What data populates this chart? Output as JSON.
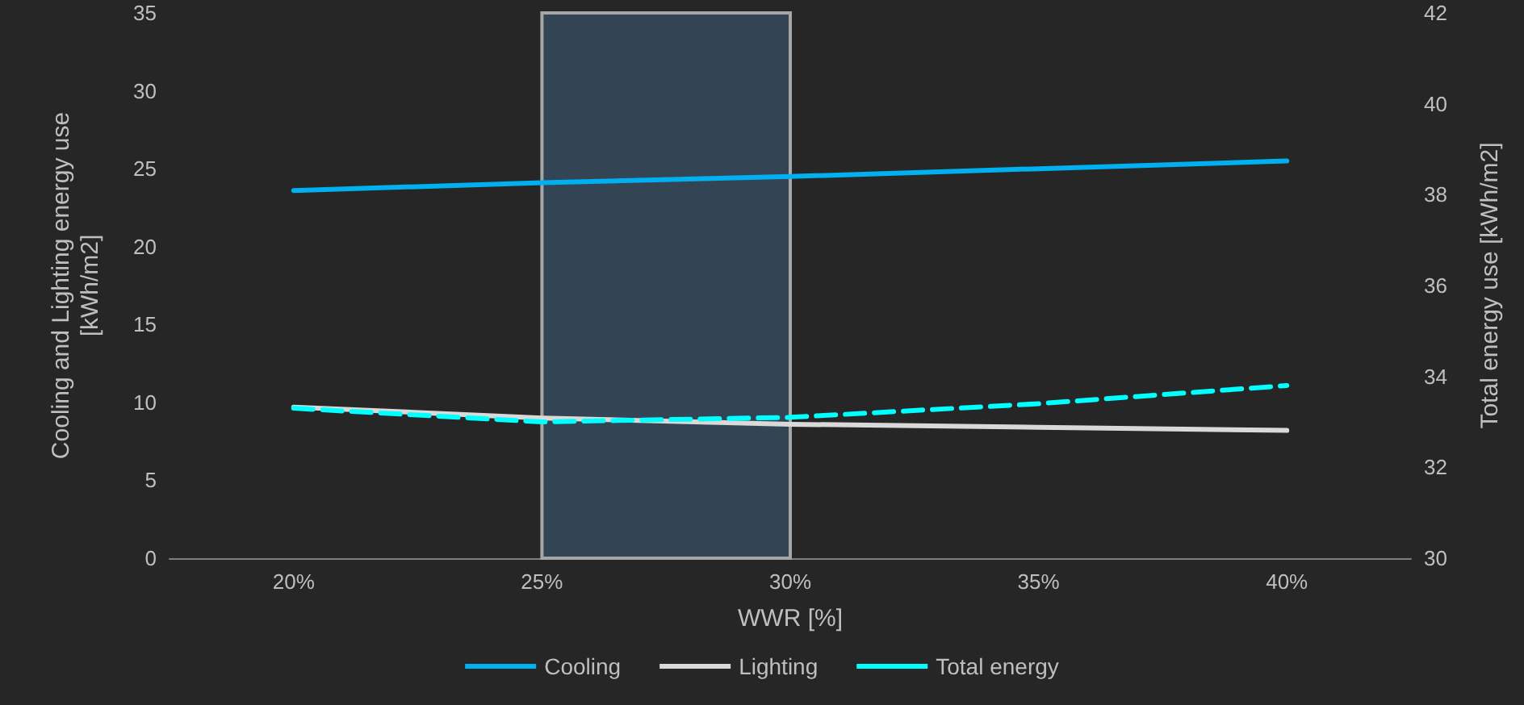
{
  "chart_data": {
    "type": "line",
    "xlabel": "WWR [%]",
    "ylabel": "Cooling and Lighting energy use\n[kWh/m2]",
    "y2label": "Total energy use [kWh/m2]",
    "categories": [
      "20%",
      "25%",
      "30%",
      "35%",
      "40%"
    ],
    "series": [
      {
        "name": "Cooling",
        "color": "#00b0f0",
        "values": [
          23.6,
          24.1,
          24.5,
          25.0,
          25.5
        ]
      },
      {
        "name": "Lighting",
        "color": "#d9d9d9",
        "values": [
          9.7,
          9.0,
          8.6,
          8.4,
          8.2
        ]
      },
      {
        "name": "Total energy",
        "color": "#00ffff",
        "axis": "y2",
        "line_style": "dashed",
        "values": [
          33.3,
          33.0,
          33.1,
          33.4,
          33.8
        ]
      }
    ],
    "ylim": [
      0,
      35
    ],
    "yticks": [
      0,
      5,
      10,
      15,
      20,
      25,
      30,
      35
    ],
    "y2lim": [
      30,
      42
    ],
    "y2ticks": [
      30,
      32,
      34,
      36,
      38,
      40,
      42
    ],
    "bands": [
      {
        "axis": "x",
        "from": "25%",
        "to": "30%",
        "color": "#334455"
      }
    ],
    "grid": false,
    "legend": "bottom",
    "marker": "none",
    "line_style": "solid"
  }
}
